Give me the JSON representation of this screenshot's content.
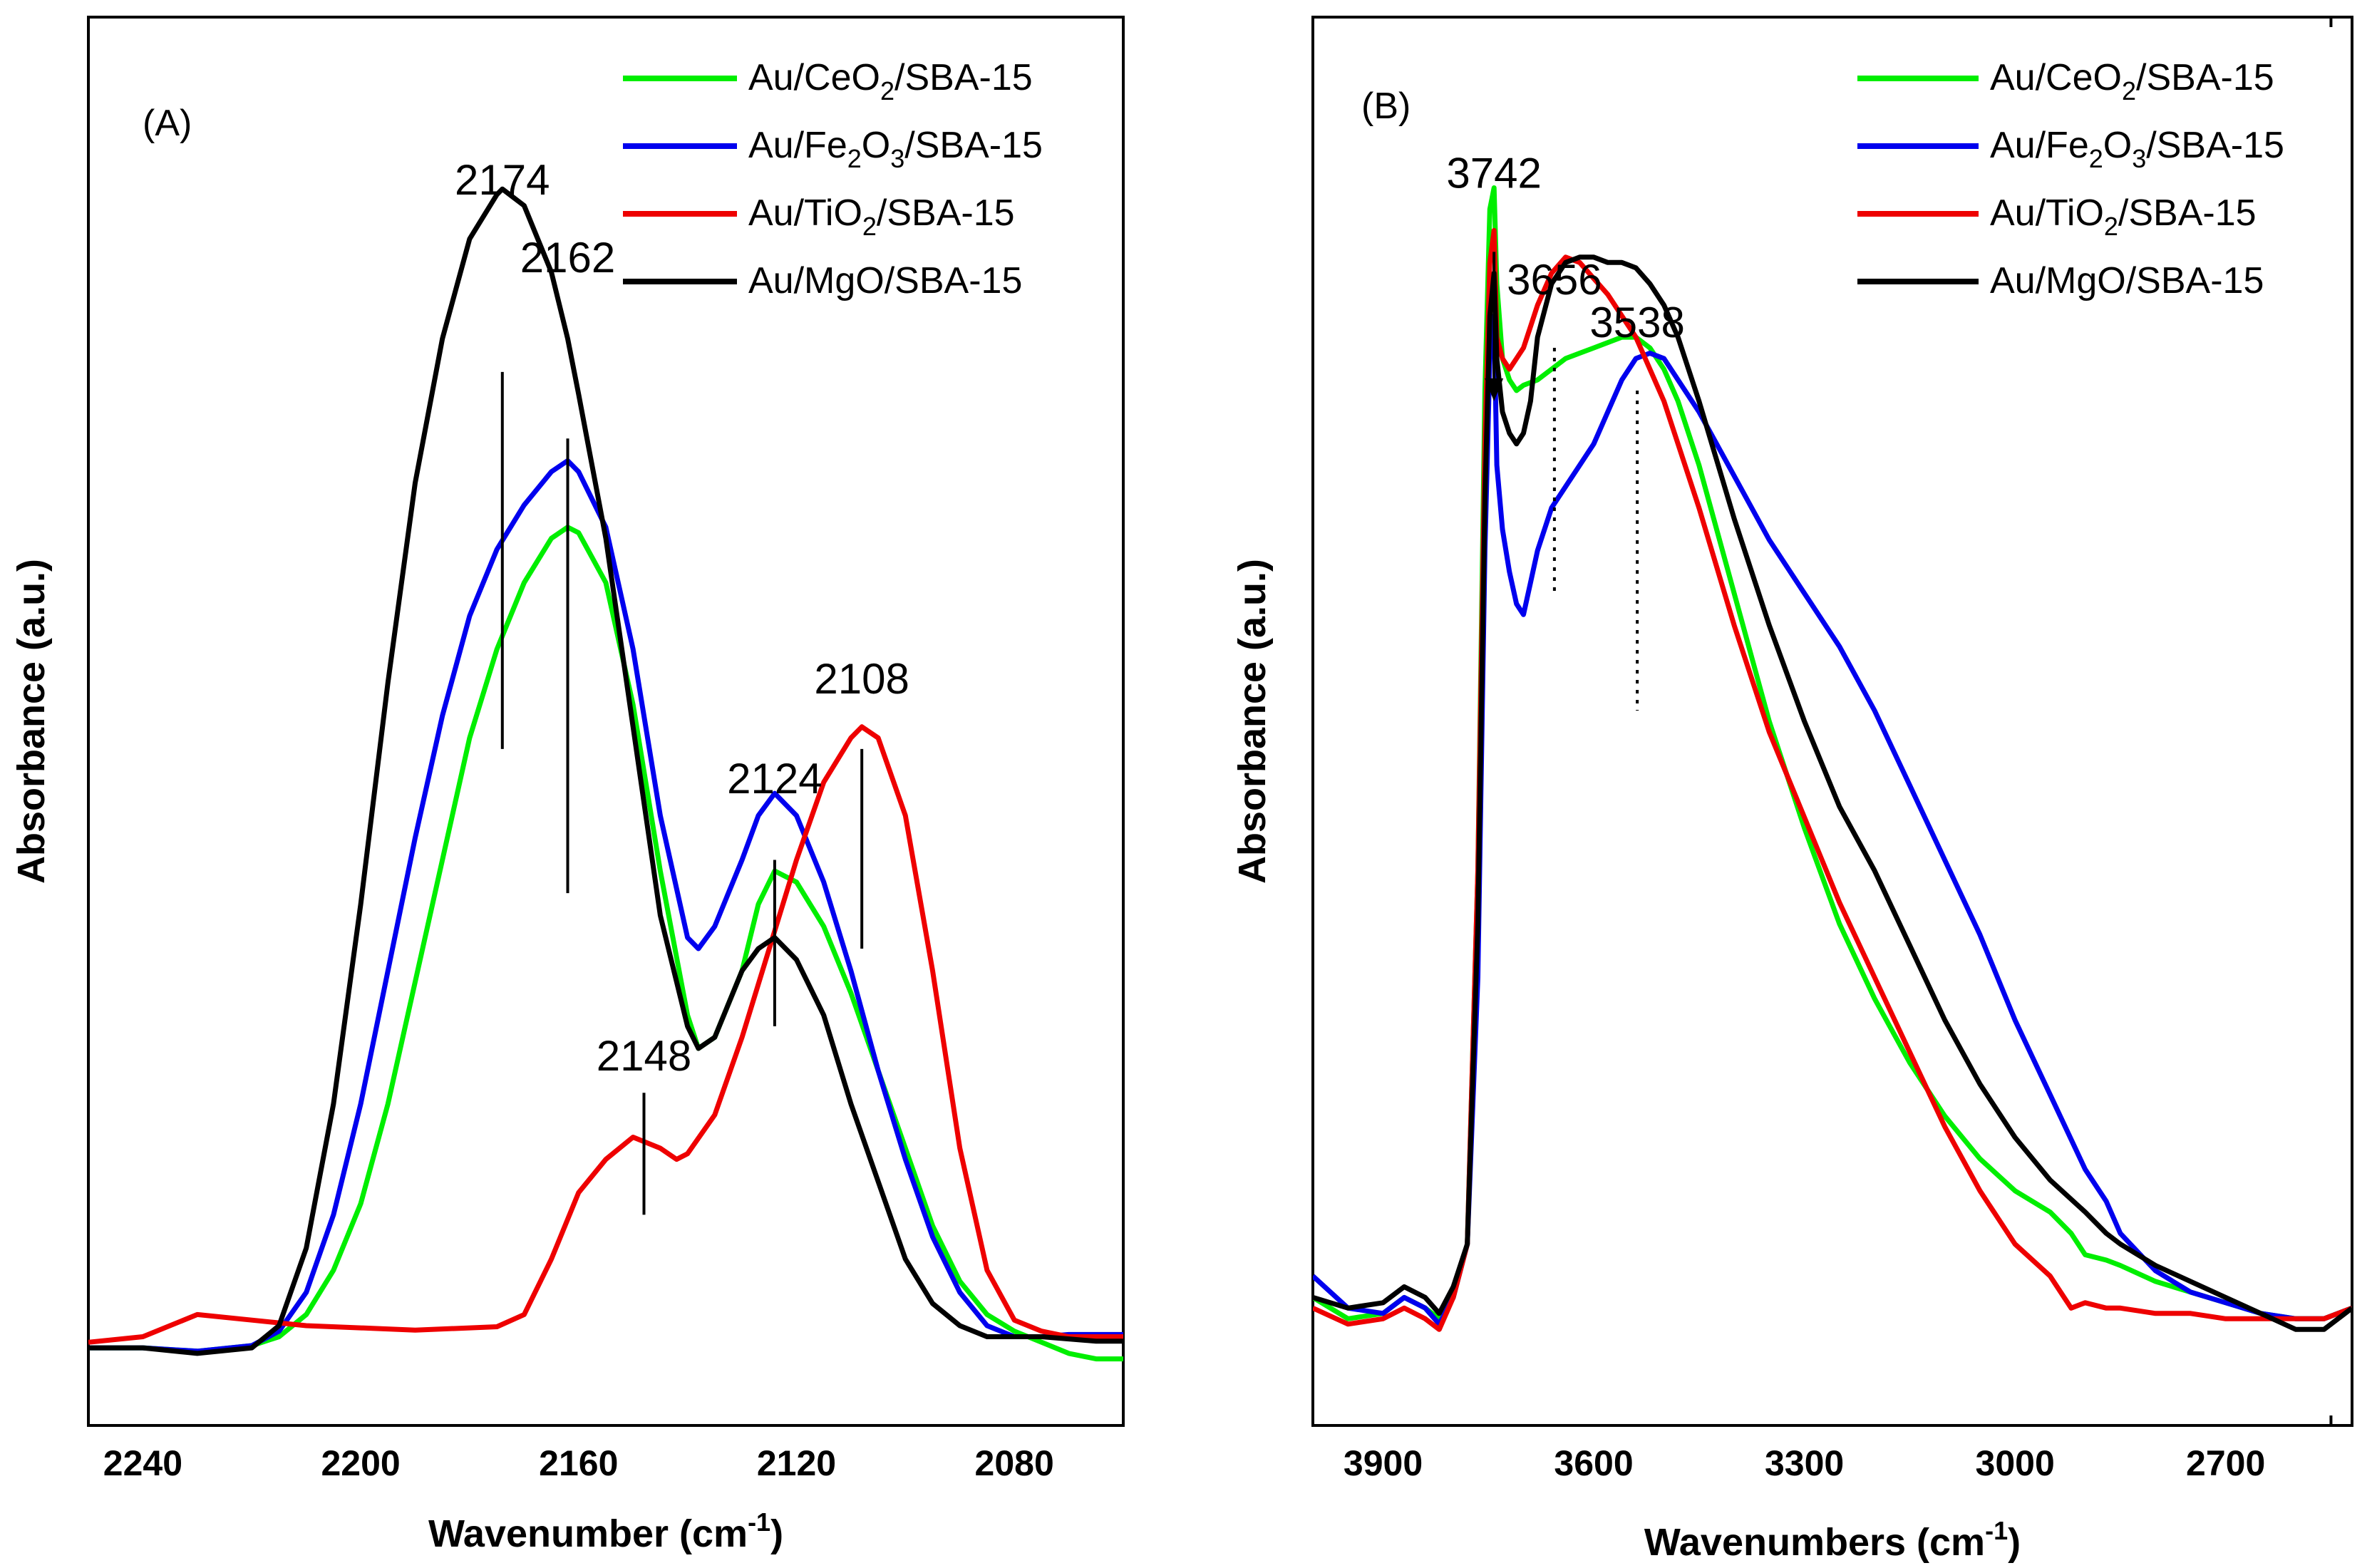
{
  "panels": [
    {
      "panel_label": "(A)",
      "colors": {
        "green": "#00ee00",
        "blue": "#0000ee",
        "red": "#ee0000",
        "black": "#000000"
      },
      "legend": [
        {
          "base": "Au/CeO",
          "sub": "2",
          "rest": "/SBA-15",
          "color": "green"
        },
        {
          "base": "Au/Fe",
          "sub": "2",
          "mid": "O",
          "sub2": "3",
          "rest": "/SBA-15",
          "color": "blue"
        },
        {
          "base": "Au/TiO",
          "sub": "2",
          "rest": "/SBA-15",
          "color": "red"
        },
        {
          "base": "Au/MgO/SBA-15",
          "sub": "",
          "rest": "",
          "color": "black"
        }
      ],
      "annotations": [
        {
          "text": "2174",
          "x": 2174,
          "y": 1.04,
          "y1": 0.88,
          "y2": 0.54,
          "style": "solid"
        },
        {
          "text": "2162",
          "x": 2162,
          "y": 0.97,
          "y1": 0.82,
          "y2": 0.41,
          "style": "solid"
        },
        {
          "text": "2124",
          "x": 2124,
          "y": 0.5,
          "y1": 0.44,
          "y2": 0.29,
          "style": "solid"
        },
        {
          "text": "2108",
          "x": 2108,
          "y": 0.59,
          "y1": 0.54,
          "y2": 0.36,
          "style": "solid"
        },
        {
          "text": "2148",
          "x": 2148,
          "y": 0.25,
          "y1": 0.23,
          "y2": 0.12,
          "style": "solid"
        }
      ]
    },
    {
      "panel_label": "(B)",
      "colors": {
        "green": "#00ee00",
        "blue": "#0000ee",
        "red": "#ee0000",
        "black": "#000000"
      },
      "legend": [
        {
          "base": "Au/CeO",
          "sub": "2",
          "rest": "/SBA-15",
          "color": "green"
        },
        {
          "base": "Au/Fe",
          "sub": "2",
          "mid": "O",
          "sub2": "3",
          "rest": "/SBA-15",
          "color": "blue"
        },
        {
          "base": "Au/TiO",
          "sub": "2",
          "rest": "/SBA-15",
          "color": "red"
        },
        {
          "base": "Au/MgO/SBA-15",
          "sub": "",
          "rest": "",
          "color": "black"
        }
      ],
      "annotations": [
        {
          "text": "3742",
          "x": 3742,
          "y": 1.04,
          "y1": 0.98,
          "y2": 0.84,
          "style": "arrow"
        },
        {
          "text": "3656",
          "x": 3656,
          "y": 0.94,
          "y1": 0.89,
          "y2": 0.66,
          "style": "dotted"
        },
        {
          "text": "3538",
          "x": 3538,
          "y": 0.9,
          "y1": 0.85,
          "y2": 0.55,
          "style": "dotted"
        }
      ]
    }
  ],
  "chart_data": [
    {
      "type": "line",
      "title": "",
      "xlabel": "Wavenumber (cm",
      "xlabel_sup": "-1",
      "xlabel_close": ")",
      "ylabel": "Absorbance (a.u.)",
      "xlim": [
        2250,
        2060
      ],
      "ylim": [
        -0.07,
        1.2
      ],
      "x_reversed": true,
      "y_ticks_shown": false,
      "xticks": [
        2240,
        2200,
        2160,
        2120,
        2080
      ],
      "grid": false,
      "series": [
        {
          "name": "Au/CeO2/SBA-15",
          "color": "green",
          "x": [
            2250,
            2240,
            2230,
            2220,
            2215,
            2210,
            2205,
            2200,
            2195,
            2190,
            2185,
            2180,
            2175,
            2170,
            2165,
            2162,
            2160,
            2155,
            2150,
            2145,
            2140,
            2138,
            2135,
            2130,
            2127,
            2124,
            2120,
            2115,
            2110,
            2105,
            2100,
            2095,
            2090,
            2085,
            2080,
            2075,
            2070,
            2065,
            2060
          ],
          "y": [
            0.0,
            0.0,
            -0.003,
            0.002,
            0.01,
            0.03,
            0.07,
            0.13,
            0.22,
            0.33,
            0.44,
            0.55,
            0.63,
            0.69,
            0.73,
            0.74,
            0.735,
            0.69,
            0.58,
            0.43,
            0.3,
            0.27,
            0.28,
            0.34,
            0.4,
            0.43,
            0.42,
            0.38,
            0.32,
            0.25,
            0.18,
            0.11,
            0.06,
            0.03,
            0.015,
            0.005,
            -0.005,
            -0.01,
            -0.01
          ]
        },
        {
          "name": "Au/Fe2O3/SBA-15",
          "color": "blue",
          "x": [
            2250,
            2240,
            2230,
            2220,
            2215,
            2210,
            2205,
            2200,
            2195,
            2190,
            2185,
            2180,
            2175,
            2170,
            2165,
            2162,
            2160,
            2155,
            2150,
            2145,
            2140,
            2138,
            2135,
            2130,
            2127,
            2124,
            2120,
            2115,
            2110,
            2105,
            2100,
            2095,
            2090,
            2085,
            2080,
            2075,
            2070,
            2065,
            2060
          ],
          "y": [
            0.0,
            0.0,
            -0.003,
            0.002,
            0.015,
            0.05,
            0.12,
            0.22,
            0.34,
            0.46,
            0.57,
            0.66,
            0.72,
            0.76,
            0.79,
            0.8,
            0.79,
            0.74,
            0.63,
            0.48,
            0.37,
            0.36,
            0.38,
            0.44,
            0.48,
            0.5,
            0.48,
            0.42,
            0.34,
            0.25,
            0.17,
            0.1,
            0.05,
            0.02,
            0.01,
            0.01,
            0.012,
            0.012,
            0.012
          ]
        },
        {
          "name": "Au/TiO2/SBA-15",
          "color": "red",
          "x": [
            2250,
            2240,
            2230,
            2220,
            2210,
            2200,
            2190,
            2180,
            2175,
            2170,
            2165,
            2160,
            2155,
            2150,
            2145,
            2142,
            2140,
            2135,
            2130,
            2125,
            2120,
            2115,
            2110,
            2108,
            2105,
            2100,
            2095,
            2090,
            2085,
            2080,
            2075,
            2070,
            2065,
            2060
          ],
          "y": [
            0.005,
            0.01,
            0.03,
            0.025,
            0.02,
            0.018,
            0.016,
            0.018,
            0.019,
            0.03,
            0.08,
            0.14,
            0.17,
            0.19,
            0.18,
            0.17,
            0.175,
            0.21,
            0.28,
            0.36,
            0.44,
            0.51,
            0.55,
            0.56,
            0.55,
            0.48,
            0.34,
            0.18,
            0.07,
            0.025,
            0.015,
            0.01,
            0.01,
            0.01
          ]
        },
        {
          "name": "Au/MgO/SBA-15",
          "color": "black",
          "x": [
            2250,
            2240,
            2230,
            2220,
            2215,
            2210,
            2205,
            2200,
            2195,
            2190,
            2185,
            2180,
            2175,
            2174,
            2170,
            2165,
            2162,
            2160,
            2155,
            2150,
            2145,
            2140,
            2138,
            2135,
            2130,
            2127,
            2124,
            2120,
            2115,
            2110,
            2105,
            2100,
            2095,
            2090,
            2085,
            2080,
            2075,
            2070,
            2065,
            2060
          ],
          "y": [
            0.0,
            0.0,
            -0.005,
            0.0,
            0.02,
            0.09,
            0.22,
            0.4,
            0.6,
            0.78,
            0.91,
            1.0,
            1.04,
            1.045,
            1.03,
            0.97,
            0.91,
            0.86,
            0.73,
            0.56,
            0.39,
            0.29,
            0.27,
            0.28,
            0.34,
            0.36,
            0.37,
            0.35,
            0.3,
            0.22,
            0.15,
            0.08,
            0.04,
            0.02,
            0.01,
            0.01,
            0.01,
            0.008,
            0.006,
            0.006
          ]
        }
      ]
    },
    {
      "type": "line",
      "title": "",
      "xlabel": "Wavenumbers (cm",
      "xlabel_sup": "-1",
      "xlabel_close": ")",
      "ylabel": "Absorbance (a.u.)",
      "xlim": [
        4000,
        2520
      ],
      "ylim": [
        -0.12,
        1.2
      ],
      "x_reversed": true,
      "y_ticks_shown": false,
      "xticks": [
        3900,
        3600,
        3300,
        3000,
        2700
      ],
      "grid": false,
      "series": [
        {
          "name": "Au/CeO2/SBA-15",
          "color": "green",
          "x": [
            4000,
            3950,
            3900,
            3870,
            3840,
            3820,
            3800,
            3780,
            3765,
            3755,
            3748,
            3742,
            3738,
            3730,
            3720,
            3710,
            3700,
            3680,
            3660,
            3640,
            3620,
            3600,
            3580,
            3560,
            3540,
            3520,
            3500,
            3480,
            3450,
            3400,
            3350,
            3300,
            3250,
            3200,
            3150,
            3100,
            3050,
            3000,
            2950,
            2920,
            2900,
            2870,
            2850,
            2800,
            2750,
            2700,
            2650,
            2600,
            2560,
            2520
          ],
          "y": [
            0.0,
            -0.02,
            -0.015,
            0.0,
            -0.01,
            -0.02,
            0.0,
            0.05,
            0.4,
            0.85,
            1.02,
            1.04,
            0.95,
            0.88,
            0.86,
            0.85,
            0.855,
            0.86,
            0.87,
            0.88,
            0.885,
            0.89,
            0.895,
            0.9,
            0.9,
            0.89,
            0.87,
            0.84,
            0.78,
            0.66,
            0.54,
            0.44,
            0.35,
            0.28,
            0.22,
            0.17,
            0.13,
            0.1,
            0.08,
            0.06,
            0.04,
            0.035,
            0.03,
            0.015,
            0.005,
            -0.005,
            -0.015,
            -0.02,
            -0.02,
            -0.01
          ]
        },
        {
          "name": "Au/Fe2O3/SBA-15",
          "color": "blue",
          "x": [
            4000,
            3950,
            3900,
            3870,
            3840,
            3820,
            3800,
            3780,
            3765,
            3755,
            3748,
            3742,
            3738,
            3730,
            3720,
            3710,
            3700,
            3690,
            3680,
            3660,
            3640,
            3620,
            3600,
            3580,
            3560,
            3540,
            3520,
            3500,
            3480,
            3450,
            3400,
            3350,
            3300,
            3250,
            3200,
            3150,
            3100,
            3050,
            3000,
            2950,
            2900,
            2870,
            2850,
            2800,
            2750,
            2700,
            2650,
            2600,
            2560,
            2520
          ],
          "y": [
            0.02,
            -0.01,
            -0.015,
            0.0,
            -0.01,
            -0.025,
            0.0,
            0.05,
            0.3,
            0.7,
            0.88,
            0.92,
            0.78,
            0.72,
            0.68,
            0.65,
            0.64,
            0.67,
            0.7,
            0.74,
            0.76,
            0.78,
            0.8,
            0.83,
            0.86,
            0.88,
            0.885,
            0.88,
            0.86,
            0.83,
            0.77,
            0.71,
            0.66,
            0.61,
            0.55,
            0.48,
            0.41,
            0.34,
            0.26,
            0.19,
            0.12,
            0.09,
            0.06,
            0.025,
            0.005,
            -0.005,
            -0.015,
            -0.02,
            -0.02,
            -0.01
          ]
        },
        {
          "name": "Au/TiO2/SBA-15",
          "color": "red",
          "x": [
            4000,
            3950,
            3900,
            3870,
            3840,
            3820,
            3800,
            3780,
            3765,
            3755,
            3748,
            3742,
            3738,
            3730,
            3720,
            3710,
            3700,
            3690,
            3680,
            3660,
            3640,
            3620,
            3600,
            3580,
            3560,
            3540,
            3520,
            3500,
            3480,
            3450,
            3400,
            3350,
            3300,
            3250,
            3200,
            3150,
            3100,
            3050,
            3000,
            2950,
            2930,
            2920,
            2900,
            2870,
            2850,
            2800,
            2750,
            2700,
            2650,
            2600,
            2560,
            2520
          ],
          "y": [
            -0.01,
            -0.025,
            -0.02,
            -0.01,
            -0.02,
            -0.03,
            0.0,
            0.05,
            0.4,
            0.8,
            0.97,
            1.0,
            0.9,
            0.88,
            0.87,
            0.88,
            0.89,
            0.91,
            0.93,
            0.96,
            0.975,
            0.97,
            0.955,
            0.94,
            0.92,
            0.9,
            0.87,
            0.84,
            0.8,
            0.74,
            0.63,
            0.53,
            0.45,
            0.37,
            0.3,
            0.23,
            0.16,
            0.1,
            0.05,
            0.02,
            0.0,
            -0.01,
            -0.005,
            -0.01,
            -0.01,
            -0.015,
            -0.015,
            -0.02,
            -0.02,
            -0.02,
            -0.02,
            -0.01
          ]
        },
        {
          "name": "Au/MgO/SBA-15",
          "color": "black",
          "x": [
            4000,
            3950,
            3900,
            3870,
            3840,
            3820,
            3800,
            3780,
            3765,
            3755,
            3748,
            3742,
            3738,
            3730,
            3720,
            3710,
            3700,
            3690,
            3680,
            3660,
            3640,
            3620,
            3600,
            3580,
            3560,
            3540,
            3520,
            3500,
            3480,
            3450,
            3400,
            3350,
            3300,
            3250,
            3200,
            3150,
            3100,
            3050,
            3000,
            2950,
            2900,
            2870,
            2850,
            2800,
            2750,
            2700,
            2650,
            2600,
            2560,
            2520
          ],
          "y": [
            0.0,
            -0.01,
            -0.005,
            0.01,
            0.0,
            -0.015,
            0.01,
            0.05,
            0.35,
            0.75,
            0.92,
            0.96,
            0.88,
            0.83,
            0.81,
            0.8,
            0.81,
            0.84,
            0.9,
            0.95,
            0.97,
            0.975,
            0.975,
            0.97,
            0.97,
            0.965,
            0.95,
            0.93,
            0.9,
            0.84,
            0.73,
            0.63,
            0.54,
            0.46,
            0.4,
            0.33,
            0.26,
            0.2,
            0.15,
            0.11,
            0.08,
            0.06,
            0.05,
            0.03,
            0.015,
            0.0,
            -0.015,
            -0.03,
            -0.03,
            -0.01
          ]
        }
      ]
    }
  ]
}
